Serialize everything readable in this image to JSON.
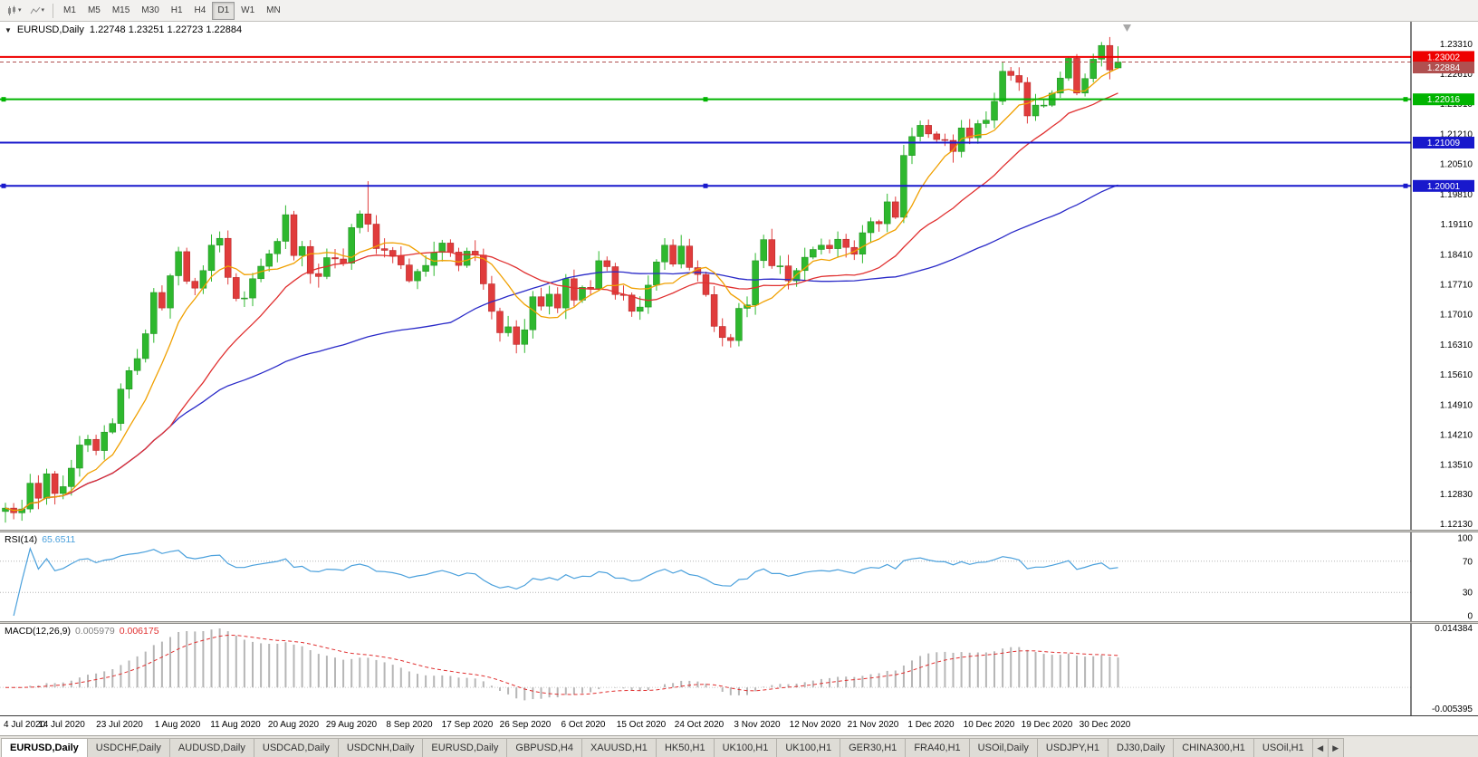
{
  "toolbar": {
    "icons": [
      {
        "name": "candlestick-chart",
        "caret": "▾"
      },
      {
        "name": "line-chart",
        "caret": "▾"
      }
    ],
    "timeframes": [
      {
        "label": "M1",
        "active": false
      },
      {
        "label": "M5",
        "active": false
      },
      {
        "label": "M15",
        "active": false
      },
      {
        "label": "M30",
        "active": false
      },
      {
        "label": "H1",
        "active": false
      },
      {
        "label": "H4",
        "active": false
      },
      {
        "label": "D1",
        "active": true
      },
      {
        "label": "W1",
        "active": false
      },
      {
        "label": "MN",
        "active": false
      }
    ]
  },
  "chart": {
    "collapse_glyph": "▼",
    "title": "EURUSD,Daily",
    "ohlc_text": "1.22748 1.23251 1.22723 1.22884"
  },
  "chart_data": {
    "type": "candlestick",
    "symbol": "EURUSD",
    "period": "Daily",
    "ohlc_display": {
      "open": "1.22748",
      "high": "1.23251",
      "low": "1.22723",
      "close": "1.22884"
    },
    "y_axis_labels": [
      "1.23310",
      "1.22610",
      "1.21910",
      "1.21210",
      "1.20510",
      "1.19810",
      "1.19110",
      "1.18410",
      "1.17710",
      "1.17010",
      "1.16310",
      "1.15610",
      "1.14910",
      "1.14210",
      "1.13510",
      "1.12830",
      "1.12130"
    ],
    "x_axis_labels": [
      "4 Jul 2020",
      "14 Jul 2020",
      "23 Jul 2020",
      "1 Aug 2020",
      "11 Aug 2020",
      "20 Aug 2020",
      "29 Aug 2020",
      "8 Sep 2020",
      "17 Sep 2020",
      "26 Sep 2020",
      "6 Oct 2020",
      "15 Oct 2020",
      "24 Oct 2020",
      "3 Nov 2020",
      "12 Nov 2020",
      "21 Nov 2020",
      "1 Dec 2020",
      "10 Dec 2020",
      "19 Dec 2020",
      "30 Dec 2020"
    ],
    "price_axis_range": {
      "top": 1.2378,
      "bottom": 1.1206
    },
    "first_open": 1.1242,
    "closes": [
      1.125,
      1.1239,
      1.1248,
      1.1308,
      1.1273,
      1.133,
      1.1284,
      1.13,
      1.1343,
      1.1397,
      1.141,
      1.1384,
      1.1427,
      1.1447,
      1.1527,
      1.157,
      1.1598,
      1.1656,
      1.1752,
      1.1716,
      1.1791,
      1.1847,
      1.1778,
      1.1762,
      1.1803,
      1.1862,
      1.1878,
      1.1787,
      1.1738,
      1.1739,
      1.1784,
      1.1813,
      1.1842,
      1.1871,
      1.1933,
      1.1838,
      1.1859,
      1.1796,
      1.1789,
      1.1833,
      1.183,
      1.182,
      1.1903,
      1.1935,
      1.1911,
      1.1854,
      1.185,
      1.1838,
      1.1816,
      1.1779,
      1.1801,
      1.1815,
      1.1845,
      1.1867,
      1.1846,
      1.1815,
      1.1848,
      1.1839,
      1.1772,
      1.1708,
      1.1658,
      1.1672,
      1.1631,
      1.1665,
      1.1742,
      1.172,
      1.1748,
      1.1716,
      1.1784,
      1.1734,
      1.1764,
      1.176,
      1.1826,
      1.1812,
      1.1747,
      1.1746,
      1.1708,
      1.1718,
      1.1769,
      1.1823,
      1.1862,
      1.1818,
      1.186,
      1.181,
      1.1794,
      1.1747,
      1.1673,
      1.1647,
      1.164,
      1.1715,
      1.1723,
      1.1826,
      1.1875,
      1.1814,
      1.1814,
      1.1779,
      1.1803,
      1.1834,
      1.1852,
      1.1862,
      1.1854,
      1.1876,
      1.1857,
      1.1841,
      1.1891,
      1.1917,
      1.1912,
      1.1963,
      1.1927,
      1.2071,
      1.2115,
      1.2141,
      1.2121,
      1.2108,
      1.2106,
      1.208,
      1.2135,
      1.2112,
      1.2145,
      1.2153,
      1.2197,
      1.2267,
      1.2257,
      1.2241,
      1.2163,
      1.2188,
      1.2188,
      1.2216,
      1.2251,
      1.2297,
      1.2216,
      1.225,
      1.2295,
      1.2327,
      1.227,
      1.22884
    ],
    "wick_overrides": {
      "44": {
        "h": 1.2011
      },
      "133": {
        "h": 1.2335
      },
      "135": {
        "o": 1.22748,
        "h": 1.23251,
        "l": 1.22723
      }
    },
    "up_color": "#2eb82e",
    "down_color": "#e03c3c",
    "moving_averages": [
      {
        "period": 55,
        "color": "#2a2ac8"
      },
      {
        "period": 21,
        "color": "#e03030"
      },
      {
        "period": 8,
        "color": "#f0a000"
      }
    ],
    "hlines": [
      {
        "value": 1.23002,
        "label": "1.23002",
        "color": "#ee0000",
        "width": 2,
        "handles": false
      },
      {
        "value": 1.22016,
        "label": "1.22016",
        "color": "#00b400",
        "width": 2,
        "handles": true
      },
      {
        "value": 1.21009,
        "label": "1.21009",
        "color": "#1818cc",
        "width": 2,
        "handles": false
      },
      {
        "value": 1.20001,
        "label": "1.20001",
        "color": "#1818cc",
        "width": 2,
        "handles": true
      }
    ],
    "bid_line": {
      "value": 1.22884,
      "label": "1.22884",
      "color": "#b05050"
    },
    "shift_marker_color": "#a8a8a8",
    "rsi": {
      "name": "RSI(14)",
      "value": "65.6511",
      "period": 14,
      "color": "#4aa0dc",
      "axis_labels": [
        "100",
        "70",
        "30",
        "0"
      ],
      "levels": [
        70,
        30
      ]
    },
    "macd": {
      "name": "MACD(12,26,9)",
      "value_main": "0.005979",
      "value_signal": "0.006175",
      "fast": 12,
      "slow": 26,
      "signal": 9,
      "hist_color": "#b6b6b6",
      "signal_color": "#e03030",
      "axis_top": 0.014384,
      "axis_bottom": -0.005395,
      "axis_labels": [
        "0.014384",
        "-0.005395"
      ]
    }
  },
  "tabs": {
    "items": [
      {
        "label": "EURUSD,Daily",
        "active": true
      },
      {
        "label": "USDCHF,Daily",
        "active": false
      },
      {
        "label": "AUDUSD,Daily",
        "active": false
      },
      {
        "label": "USDCAD,Daily",
        "active": false
      },
      {
        "label": "USDCNH,Daily",
        "active": false
      },
      {
        "label": "EURUSD,Daily",
        "active": false
      },
      {
        "label": "GBPUSD,H4",
        "active": false
      },
      {
        "label": "XAUUSD,H1",
        "active": false
      },
      {
        "label": "HK50,H1",
        "active": false
      },
      {
        "label": "UK100,H1",
        "active": false
      },
      {
        "label": "UK100,H1",
        "active": false
      },
      {
        "label": "GER30,H1",
        "active": false
      },
      {
        "label": "FRA40,H1",
        "active": false
      },
      {
        "label": "USOil,Daily",
        "active": false
      },
      {
        "label": "USDJPY,H1",
        "active": false
      },
      {
        "label": "DJ30,Daily",
        "active": false
      },
      {
        "label": "CHINA300,H1",
        "active": false
      },
      {
        "label": "USOil,H1",
        "active": false
      }
    ],
    "scroll_left": "◀",
    "scroll_right": "▶"
  }
}
